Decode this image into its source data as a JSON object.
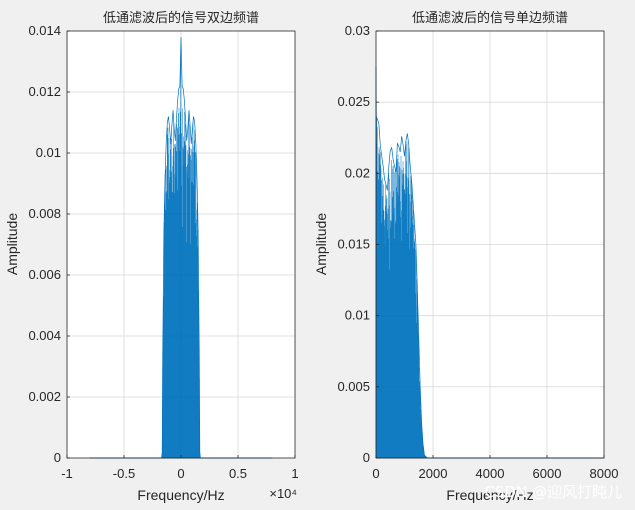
{
  "chart_data": [
    {
      "type": "spectrum",
      "title": "低通滤波后的信号双边频谱",
      "xlabel": "Frequency/Hz",
      "ylabel": "Amplitude",
      "xlim": [
        -1,
        1
      ],
      "ylim": [
        0,
        0.014
      ],
      "x_exponent_label": "×10⁴",
      "grid": true,
      "xticks": [
        -1,
        -0.5,
        0,
        0.5,
        1
      ],
      "xtick_labels": [
        "-1",
        "-0.5",
        "0",
        "0.5",
        "1"
      ],
      "yticks": [
        0,
        0.002,
        0.004,
        0.006,
        0.008,
        0.01,
        0.012,
        0.014
      ],
      "ytick_labels": [
        "0",
        "0.002",
        "0.004",
        "0.006",
        "0.008",
        "0.01",
        "0.012",
        "0.014"
      ],
      "color": "#0072bd",
      "series": [
        {
          "x": [
            -0.8,
            -0.17,
            -0.165,
            -0.16,
            -0.15,
            -0.14,
            -0.13,
            -0.12,
            -0.11,
            -0.1,
            -0.09,
            -0.08,
            -0.07,
            -0.06,
            -0.05,
            -0.04,
            -0.03,
            -0.02,
            -0.01,
            0,
            0.01,
            0.02,
            0.03,
            0.04,
            0.05,
            0.06,
            0.07,
            0.08,
            0.09,
            0.1,
            0.11,
            0.12,
            0.13,
            0.14,
            0.15,
            0.16,
            0.165,
            0.17,
            0.8
          ],
          "y": [
            0,
            0,
            0.0002,
            0.0035,
            0.0075,
            0.0092,
            0.0103,
            0.011,
            0.0112,
            0.0108,
            0.0103,
            0.0109,
            0.0114,
            0.0108,
            0.0104,
            0.0111,
            0.0117,
            0.0121,
            0.0122,
            0.0138,
            0.0122,
            0.0121,
            0.0117,
            0.0111,
            0.0104,
            0.0108,
            0.0114,
            0.0109,
            0.0103,
            0.0108,
            0.0112,
            0.011,
            0.0103,
            0.0092,
            0.0075,
            0.0035,
            0.0002,
            0,
            0
          ]
        }
      ]
    },
    {
      "type": "spectrum",
      "title": "低通滤波后的信号单边频谱",
      "xlabel": "Frequency/Hz",
      "ylabel": "Amplitude",
      "xlim": [
        0,
        8000
      ],
      "ylim": [
        0,
        0.03
      ],
      "grid": true,
      "xticks": [
        0,
        2000,
        4000,
        6000,
        8000
      ],
      "xtick_labels": [
        "0",
        "2000",
        "4000",
        "6000",
        "8000"
      ],
      "yticks": [
        0,
        0.005,
        0.01,
        0.015,
        0.02,
        0.025,
        0.03
      ],
      "ytick_labels": [
        "0",
        "0.005",
        "0.01",
        "0.015",
        "0.02",
        "0.025",
        "0.03"
      ],
      "color": "#0072bd",
      "series": [
        {
          "x": [
            0,
            10,
            50,
            100,
            150,
            200,
            250,
            300,
            350,
            400,
            450,
            500,
            550,
            600,
            650,
            700,
            750,
            800,
            850,
            900,
            950,
            1000,
            1050,
            1100,
            1150,
            1200,
            1250,
            1300,
            1350,
            1400,
            1450,
            1500,
            1550,
            1600,
            1650,
            1700,
            1800,
            8000
          ],
          "y": [
            0.0275,
            0.024,
            0.0238,
            0.0235,
            0.022,
            0.0212,
            0.0205,
            0.0196,
            0.0192,
            0.0188,
            0.0205,
            0.0216,
            0.0218,
            0.021,
            0.0205,
            0.0201,
            0.0221,
            0.0219,
            0.0215,
            0.0226,
            0.022,
            0.0212,
            0.0223,
            0.0228,
            0.022,
            0.0205,
            0.0195,
            0.018,
            0.0165,
            0.015,
            0.012,
            0.0085,
            0.005,
            0.0025,
            0.001,
            0.0002,
            0,
            0
          ]
        }
      ]
    }
  ],
  "watermark": "CSDN @迎风打盹儿"
}
